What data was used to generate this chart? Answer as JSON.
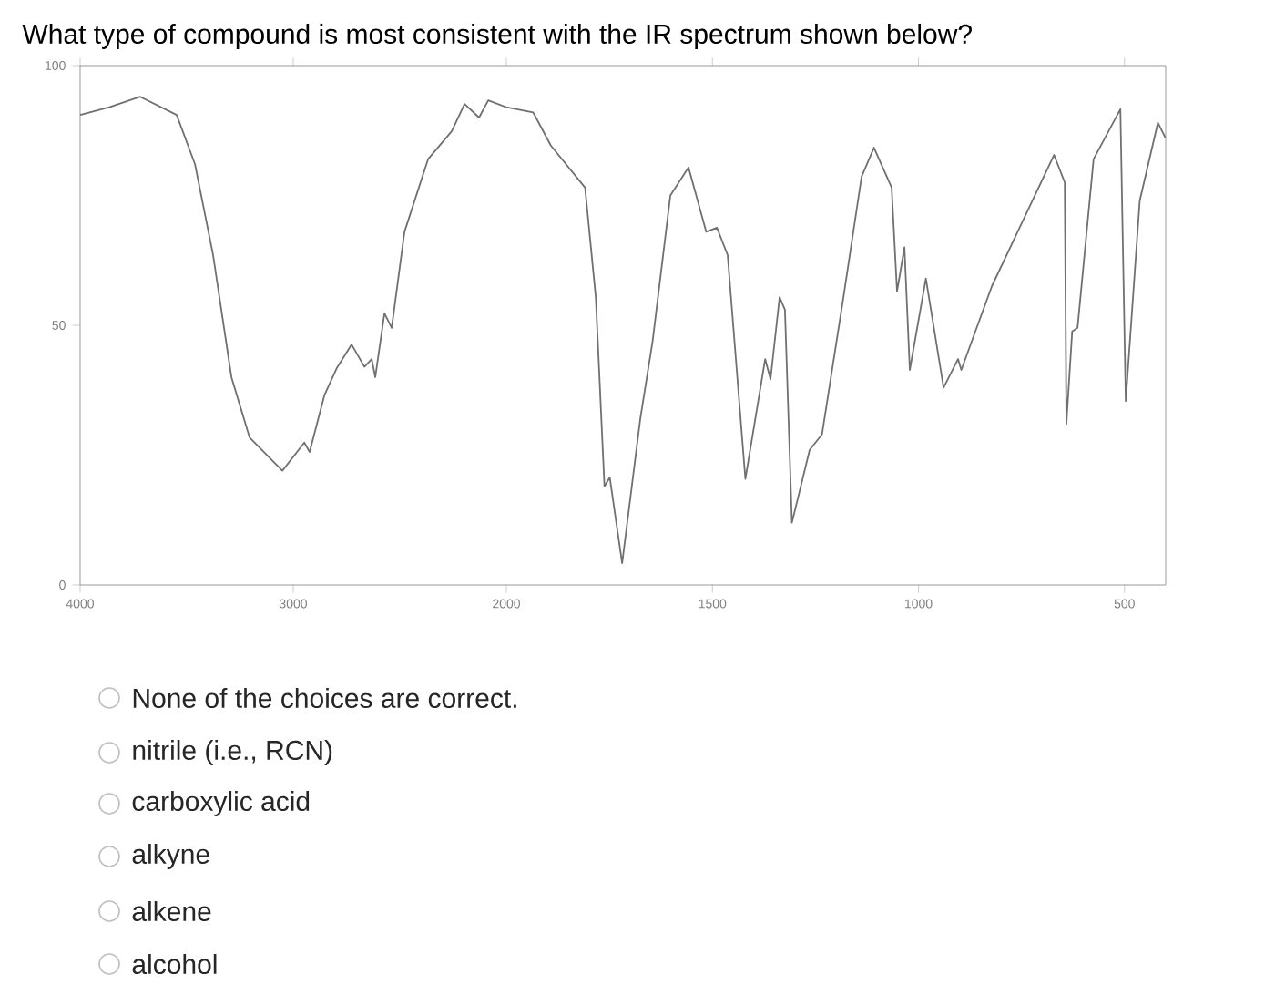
{
  "chart_data": [
    {
      "type": "line",
      "title": "What type of compound is most consistent with the IR spectrum shown below?",
      "x": [
        4000,
        3863,
        3718,
        3547,
        3461,
        3376,
        3290,
        3205,
        3051,
        2948,
        2923,
        2854,
        2795,
        2726,
        2666,
        2632,
        2615,
        2572,
        2538,
        2478,
        2367,
        2256,
        2196,
        2128,
        2085,
        2000
      ],
      "series": [
        {
          "color": "#707070",
          "values": [
            90.5,
            92,
            94,
            90.5,
            81,
            63.5,
            40,
            28.4,
            22,
            27.4,
            25.6,
            36.5,
            41.8,
            46.3,
            42,
            43.5,
            40,
            52.3,
            49.5,
            68,
            82,
            87.4,
            92.6,
            90,
            93.3,
            92
          ]
        }
      ],
      "xlim": [
        4000,
        2000
      ],
      "ylim": [
        0,
        100
      ],
      "xticks": [
        4000,
        3000
      ],
      "yticks": [
        0,
        50,
        100
      ],
      "marker": "none",
      "line_style": "solid",
      "annotations": [
        "None of the choices are correct.",
        "nitrile (i.e., RCN)",
        "carboxylic acid",
        "alkyne",
        "alkene",
        "alcohol"
      ]
    },
    {
      "type": "line",
      "x": [
        2000,
        1935,
        1892,
        1809,
        1783,
        1762,
        1749,
        1719,
        1675,
        1645,
        1602,
        1558,
        1515,
        1489,
        1463,
        1420,
        1372,
        1359,
        1337,
        1324,
        1307,
        1264,
        1234,
        1182,
        1138,
        1108,
        1065,
        1052,
        1034,
        1021,
        982,
        939,
        904,
        896,
        822,
        671,
        645,
        641,
        627,
        614,
        575,
        510,
        497,
        463,
        419,
        400
      ],
      "series": [
        {
          "color": "#707070",
          "values": [
            92,
            91,
            84.6,
            76.5,
            55.4,
            19,
            20.7,
            4.2,
            32,
            47,
            75,
            80.4,
            68,
            68.8,
            63.5,
            20.4,
            43.5,
            39.6,
            55.4,
            53,
            12,
            26,
            29,
            55.4,
            78.6,
            84.2,
            76.5,
            56.5,
            65,
            41.4,
            59,
            38,
            43.5,
            41.4,
            57.5,
            82.8,
            77.5,
            31,
            48.8,
            49.5,
            82,
            91.6,
            35.4,
            74,
            89,
            86
          ]
        }
      ],
      "xlim": [
        2000,
        400
      ],
      "ylim": [
        0,
        100
      ],
      "xticks": [
        2000,
        1500,
        1000,
        500
      ],
      "marker": "none",
      "line_style": "solid",
      "tick_labels": "x"
    }
  ]
}
